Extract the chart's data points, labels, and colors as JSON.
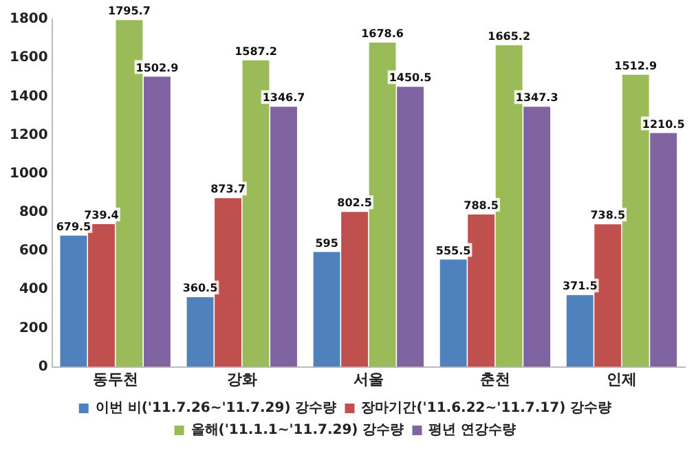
{
  "chart_data": {
    "type": "bar",
    "categories": [
      "동두천",
      "강화",
      "서울",
      "춘천",
      "인제"
    ],
    "series": [
      {
        "name": "이번 비('11.7.26~'11.7.29) 강수량",
        "color": "#4f81bd",
        "values": [
          679.5,
          360.5,
          595,
          555.5,
          371.5
        ]
      },
      {
        "name": "장마기간('11.6.22~'11.7.17) 강수량",
        "color": "#c0504d",
        "values": [
          739.4,
          873.7,
          802.5,
          788.5,
          738.5
        ]
      },
      {
        "name": "올해('11.1.1~'11.7.29) 강수량",
        "color": "#9bbb59",
        "values": [
          1795.7,
          1587.2,
          1678.6,
          1665.2,
          1512.9
        ]
      },
      {
        "name": "평년 연강수량",
        "color": "#8064a2",
        "values": [
          1502.9,
          1346.7,
          1450.5,
          1347.3,
          1210.5
        ]
      }
    ],
    "ylim": [
      0,
      1800
    ],
    "yticks": [
      0,
      200,
      400,
      600,
      800,
      1000,
      1200,
      1400,
      1600,
      1800
    ],
    "grid": false,
    "legend": "bottom",
    "data_labels": true
  }
}
